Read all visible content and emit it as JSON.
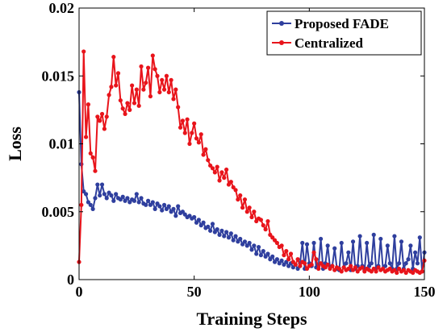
{
  "chart_data": {
    "type": "line",
    "xlabel": "Training Steps",
    "ylabel": "Loss",
    "xlim": [
      0,
      150
    ],
    "ylim": [
      0,
      0.02
    ],
    "xticks": [
      0,
      50,
      100,
      150
    ],
    "yticks": [
      0,
      0.005,
      0.01,
      0.015,
      0.02
    ],
    "xtick_labels": [
      "0",
      "50",
      "100",
      "150"
    ],
    "ytick_labels": [
      "0",
      "0.005",
      "0.01",
      "0.015",
      "0.02"
    ],
    "grid": false,
    "legend_position": "top-right",
    "series": [
      {
        "name": "Proposed FADE",
        "color": "#2f3f9e",
        "marker": "circle",
        "x": [
          0,
          1,
          2,
          3,
          4,
          5,
          6,
          7,
          8,
          9,
          10,
          11,
          12,
          13,
          14,
          15,
          16,
          17,
          18,
          19,
          20,
          21,
          22,
          23,
          24,
          25,
          26,
          27,
          28,
          29,
          30,
          31,
          32,
          33,
          34,
          35,
          36,
          37,
          38,
          39,
          40,
          41,
          42,
          43,
          44,
          45,
          46,
          47,
          48,
          49,
          50,
          51,
          52,
          53,
          54,
          55,
          56,
          57,
          58,
          59,
          60,
          61,
          62,
          63,
          64,
          65,
          66,
          67,
          68,
          69,
          70,
          71,
          72,
          73,
          74,
          75,
          76,
          77,
          78,
          79,
          80,
          81,
          82,
          83,
          84,
          85,
          86,
          87,
          88,
          89,
          90,
          91,
          92,
          93,
          94,
          95,
          96,
          97,
          98,
          99,
          100,
          101,
          102,
          103,
          104,
          105,
          106,
          107,
          108,
          109,
          110,
          111,
          112,
          113,
          114,
          115,
          116,
          117,
          118,
          119,
          120,
          121,
          122,
          123,
          124,
          125,
          126,
          127,
          128,
          129,
          130,
          131,
          132,
          133,
          134,
          135,
          136,
          137,
          138,
          139,
          140,
          141,
          142,
          143,
          144,
          145,
          146,
          147,
          148,
          149,
          150
        ],
        "y": [
          0.0138,
          0.0085,
          0.0065,
          0.0063,
          0.0057,
          0.0055,
          0.0052,
          0.006,
          0.007,
          0.0062,
          0.007,
          0.0063,
          0.006,
          0.0064,
          0.0062,
          0.0058,
          0.0063,
          0.006,
          0.0059,
          0.0061,
          0.0058,
          0.006,
          0.0057,
          0.0059,
          0.0058,
          0.0063,
          0.0057,
          0.006,
          0.0056,
          0.0055,
          0.0058,
          0.0055,
          0.0057,
          0.0052,
          0.0056,
          0.0054,
          0.0051,
          0.0055,
          0.0052,
          0.0054,
          0.005,
          0.0052,
          0.0047,
          0.0054,
          0.0049,
          0.005,
          0.0048,
          0.0046,
          0.0047,
          0.0045,
          0.0046,
          0.0042,
          0.0044,
          0.004,
          0.0042,
          0.0038,
          0.0039,
          0.0036,
          0.0041,
          0.0035,
          0.0037,
          0.0033,
          0.0036,
          0.0032,
          0.0035,
          0.0031,
          0.0034,
          0.0029,
          0.0032,
          0.0028,
          0.003,
          0.0026,
          0.0028,
          0.0025,
          0.0027,
          0.0022,
          0.0025,
          0.0019,
          0.0024,
          0.0018,
          0.0021,
          0.0017,
          0.0019,
          0.0015,
          0.0017,
          0.0013,
          0.0015,
          0.0012,
          0.0014,
          0.0011,
          0.0013,
          0.001,
          0.0012,
          0.0009,
          0.0011,
          0.0008,
          0.0012,
          0.0027,
          0.0008,
          0.0026,
          0.0012,
          0.001,
          0.0027,
          0.0009,
          0.001,
          0.003,
          0.0008,
          0.0012,
          0.0025,
          0.0009,
          0.001,
          0.0023,
          0.0008,
          0.0007,
          0.0027,
          0.0009,
          0.0012,
          0.002,
          0.0007,
          0.0028,
          0.0008,
          0.001,
          0.0032,
          0.001,
          0.0007,
          0.0027,
          0.001,
          0.0012,
          0.0033,
          0.0008,
          0.001,
          0.003,
          0.0008,
          0.001,
          0.0025,
          0.0012,
          0.0008,
          0.0032,
          0.0008,
          0.0012,
          0.0028,
          0.0008,
          0.0012,
          0.0015,
          0.0025,
          0.0008,
          0.002,
          0.0012,
          0.0031,
          0.0006,
          0.002
        ]
      },
      {
        "name": "Centralized",
        "color": "#e8141b",
        "marker": "circle",
        "x": [
          0,
          1,
          2,
          3,
          4,
          5,
          6,
          7,
          8,
          9,
          10,
          11,
          12,
          13,
          14,
          15,
          16,
          17,
          18,
          19,
          20,
          21,
          22,
          23,
          24,
          25,
          26,
          27,
          28,
          29,
          30,
          31,
          32,
          33,
          34,
          35,
          36,
          37,
          38,
          39,
          40,
          41,
          42,
          43,
          44,
          45,
          46,
          47,
          48,
          49,
          50,
          51,
          52,
          53,
          54,
          55,
          56,
          57,
          58,
          59,
          60,
          61,
          62,
          63,
          64,
          65,
          66,
          67,
          68,
          69,
          70,
          71,
          72,
          73,
          74,
          75,
          76,
          77,
          78,
          79,
          80,
          81,
          82,
          83,
          84,
          85,
          86,
          87,
          88,
          89,
          90,
          91,
          92,
          93,
          94,
          95,
          96,
          97,
          98,
          99,
          100,
          101,
          102,
          103,
          104,
          105,
          106,
          107,
          108,
          109,
          110,
          111,
          112,
          113,
          114,
          115,
          116,
          117,
          118,
          119,
          120,
          121,
          122,
          123,
          124,
          125,
          126,
          127,
          128,
          129,
          130,
          131,
          132,
          133,
          134,
          135,
          136,
          137,
          138,
          139,
          140,
          141,
          142,
          143,
          144,
          145,
          146,
          147,
          148,
          149,
          150
        ],
        "y": [
          0.0013,
          0.0055,
          0.0168,
          0.0105,
          0.0129,
          0.0093,
          0.009,
          0.008,
          0.012,
          0.0117,
          0.0122,
          0.0111,
          0.012,
          0.0136,
          0.0142,
          0.0164,
          0.0143,
          0.0152,
          0.0132,
          0.0126,
          0.0122,
          0.013,
          0.0125,
          0.0143,
          0.013,
          0.014,
          0.0128,
          0.0157,
          0.014,
          0.0145,
          0.0156,
          0.0135,
          0.0165,
          0.0155,
          0.015,
          0.0138,
          0.0147,
          0.014,
          0.015,
          0.0138,
          0.0147,
          0.0133,
          0.014,
          0.0127,
          0.0112,
          0.0117,
          0.0108,
          0.0118,
          0.01,
          0.0108,
          0.0115,
          0.0104,
          0.0101,
          0.0107,
          0.0092,
          0.0096,
          0.0088,
          0.0084,
          0.0082,
          0.0079,
          0.0083,
          0.0073,
          0.0079,
          0.0075,
          0.0081,
          0.007,
          0.0072,
          0.0068,
          0.0066,
          0.0059,
          0.0062,
          0.0053,
          0.0059,
          0.005,
          0.0053,
          0.0046,
          0.005,
          0.0043,
          0.0045,
          0.0044,
          0.004,
          0.0037,
          0.0043,
          0.0033,
          0.0031,
          0.0029,
          0.0027,
          0.0024,
          0.0025,
          0.0018,
          0.0021,
          0.0015,
          0.0019,
          0.0013,
          0.0011,
          0.0015,
          0.001,
          0.0013,
          0.0012,
          0.0008,
          0.001,
          0.0011,
          0.002,
          0.0015,
          0.0008,
          0.0012,
          0.001,
          0.0009,
          0.0011,
          0.0008,
          0.001,
          0.0007,
          0.0009,
          0.0008,
          0.0006,
          0.0009,
          0.0007,
          0.0008,
          0.001,
          0.0007,
          0.0009,
          0.0006,
          0.0008,
          0.0009,
          0.0006,
          0.0008,
          0.0007,
          0.0006,
          0.0008,
          0.0006,
          0.0009,
          0.0007,
          0.0008,
          0.0006,
          0.0007,
          0.0008,
          0.0006,
          0.0007,
          0.0005,
          0.0008,
          0.0006,
          0.0007,
          0.0005,
          0.0007,
          0.0006,
          0.0005,
          0.0007,
          0.0006,
          0.0005,
          0.0006,
          0.0014
        ]
      }
    ]
  }
}
